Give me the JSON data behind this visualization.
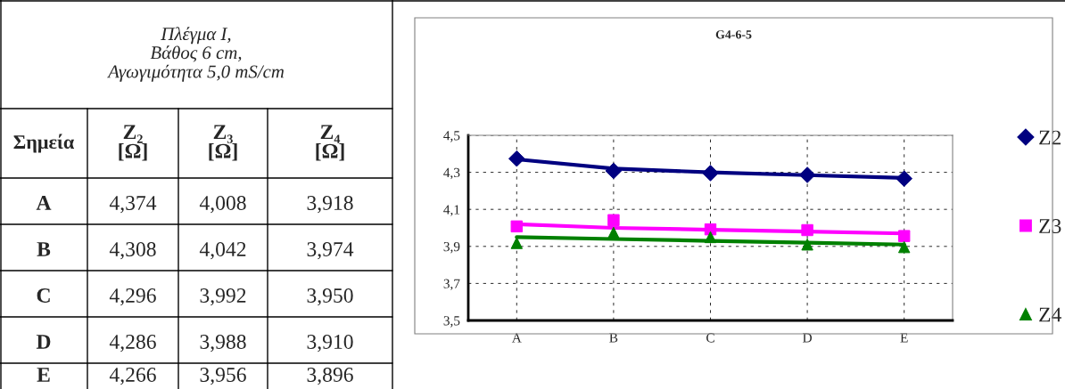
{
  "chart_data": [
    {
      "type": "other",
      "annotations": [
        "Πλέγμα I,\nΒάθος 6 cm,\nΑγωγιμότητα 5,0 mS/cm",
        "Σημεία",
        "Z₂\n[Ω]",
        "Z₃\n[Ω]",
        "Z₄\n[Ω]",
        "A",
        "4,374",
        "4,008",
        "3,918",
        "B",
        "4,308",
        "4,042",
        "3,974",
        "C",
        "4,296",
        "3,992",
        "3,950",
        "D",
        "4,286",
        "3,988",
        "3,910",
        "E",
        "4,266",
        "3,956",
        "3,896"
      ]
    },
    {
      "type": "scatter",
      "title": "G4-6-5",
      "categories": [
        "A",
        "B",
        "C",
        "D",
        "E"
      ],
      "series": [
        {
          "name": "Z2",
          "marker": "diamond",
          "color": "#000080",
          "values": [
            4.374,
            4.308,
            4.296,
            4.286,
            4.266
          ]
        },
        {
          "name": "Z3",
          "marker": "square",
          "color": "#ff00ff",
          "values": [
            4.008,
            4.042,
            3.992,
            3.988,
            3.956
          ]
        },
        {
          "name": "Z4",
          "marker": "triangle",
          "color": "#008000",
          "values": [
            3.918,
            3.974,
            3.95,
            3.91,
            3.896
          ]
        },
        {
          "type": "line",
          "marker": "none",
          "color": "#000080",
          "values": [
            4.37,
            4.32,
            4.3,
            4.285,
            4.27
          ]
        },
        {
          "type": "line",
          "marker": "none",
          "color": "#ff00ff",
          "values": [
            4.02,
            4.0,
            3.99,
            3.98,
            3.97
          ]
        },
        {
          "type": "line",
          "marker": "none",
          "color": "#008000",
          "values": [
            3.95,
            3.94,
            3.93,
            3.92,
            3.91
          ]
        }
      ],
      "ylim": [
        3.5,
        4.5
      ],
      "yticks": [
        {
          "value": 3.5,
          "label": "3,5"
        },
        {
          "value": 3.7,
          "label": "3,7"
        },
        {
          "value": 3.9,
          "label": "3,9"
        },
        {
          "value": 4.1,
          "label": "4,1"
        },
        {
          "value": 4.3,
          "label": "4,3"
        },
        {
          "value": 4.5,
          "label": "4,5"
        }
      ],
      "grid": true,
      "legend": "right"
    }
  ]
}
